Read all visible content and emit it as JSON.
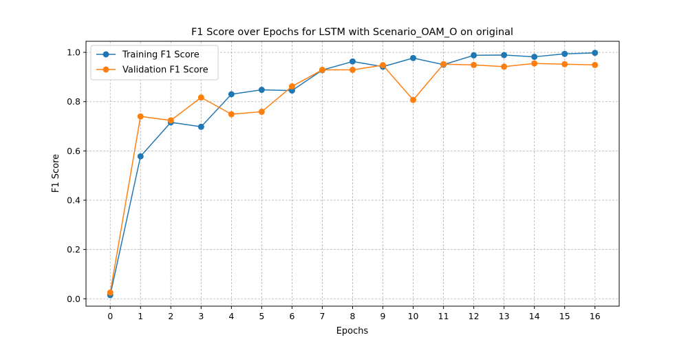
{
  "chart_data": {
    "type": "line",
    "title": "F1 Score over Epochs for LSTM with Scenario_OAM_O on original",
    "xlabel": "Epochs",
    "ylabel": "F1 Score",
    "x": [
      0,
      1,
      2,
      3,
      4,
      5,
      6,
      7,
      8,
      9,
      10,
      11,
      12,
      13,
      14,
      15,
      16
    ],
    "xlim": [
      -0.8,
      16.8
    ],
    "ylim": [
      -0.03,
      1.045
    ],
    "xticks": [
      "0",
      "1",
      "2",
      "3",
      "4",
      "5",
      "6",
      "7",
      "8",
      "9",
      "10",
      "11",
      "12",
      "13",
      "14",
      "15",
      "16"
    ],
    "yticks": [
      "0.0",
      "0.2",
      "0.4",
      "0.6",
      "0.8",
      "1.0"
    ],
    "ytick_values": [
      0.0,
      0.2,
      0.4,
      0.6,
      0.8,
      1.0
    ],
    "grid": true,
    "legend_position": "top-left",
    "series": [
      {
        "name": "Training F1 Score",
        "color": "#1f77b4",
        "values": [
          0.015,
          0.578,
          0.716,
          0.698,
          0.83,
          0.848,
          0.845,
          0.928,
          0.963,
          0.942,
          0.977,
          0.95,
          0.988,
          0.989,
          0.982,
          0.994,
          0.998
        ]
      },
      {
        "name": "Validation F1 Score",
        "color": "#ff7f0e",
        "values": [
          0.025,
          0.74,
          0.724,
          0.817,
          0.749,
          0.759,
          0.862,
          0.929,
          0.929,
          0.948,
          0.807,
          0.952,
          0.949,
          0.942,
          0.955,
          0.952,
          0.949
        ]
      }
    ]
  }
}
